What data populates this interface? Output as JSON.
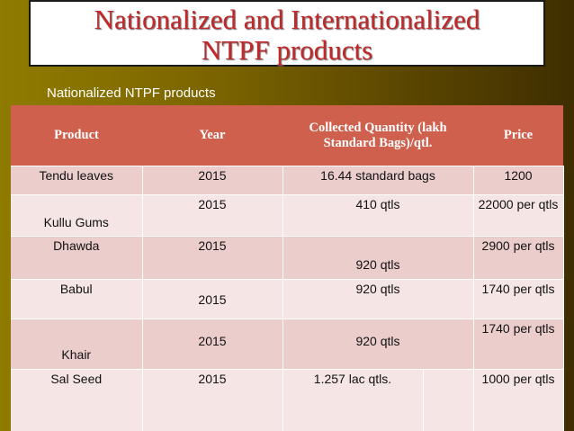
{
  "title": {
    "line1": "Nationalized and Internationalized",
    "line2": "NTPF products"
  },
  "subtitle": "Nationalized NTPF products",
  "table": {
    "headers": {
      "product": "Product",
      "year": "Year",
      "quantity": "Collected Quantity (lakh Standard Bags)/qtl.",
      "price": "Price"
    },
    "rows": [
      {
        "product": "Tendu leaves",
        "year": "2015",
        "quantity": "16.44 standard bags",
        "price": "1200"
      },
      {
        "product": "Kullu  Gums",
        "year": "2015",
        "quantity": "410  qtls",
        "price": "22000 per qtls"
      },
      {
        "product": "Dhawda",
        "year": "2015",
        "quantity": "920 qtls",
        "price": "2900 per qtls"
      },
      {
        "product": "Babul",
        "year": "2015",
        "quantity": "920 qtls",
        "price": "1740 per qtls"
      },
      {
        "product": "Khair",
        "year": "2015",
        "quantity": "920 qtls",
        "price": "1740 per qtls"
      },
      {
        "product": "Sal Seed",
        "year": "2015",
        "quantity": "1.257  lac qtls.",
        "price": "1000 per qtls"
      }
    ]
  }
}
